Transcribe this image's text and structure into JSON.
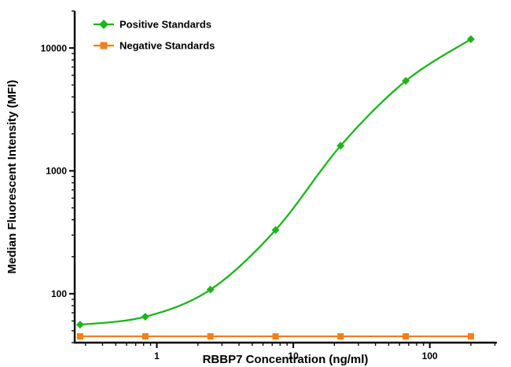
{
  "chart_data": {
    "type": "line",
    "title": "",
    "xlabel": "RBBP7 Concentration (ng/ml)",
    "ylabel": "Median Fluorescent Intensity (MFI)",
    "xscale": "log",
    "yscale": "log",
    "xlim": [
      0.25,
      310
    ],
    "ylim": [
      40,
      20000
    ],
    "xticks": [
      1,
      10,
      100
    ],
    "yticks": [
      100,
      1000,
      10000
    ],
    "grid": false,
    "legend_position": "top-left",
    "x": [
      0.274,
      0.823,
      2.47,
      7.41,
      22.2,
      66.7,
      200
    ],
    "series": [
      {
        "name": "Positive Standards",
        "color": "#1db51d",
        "marker": "diamond",
        "values": [
          56,
          65,
          108,
          330,
          1600,
          5400,
          11800
        ]
      },
      {
        "name": "Negative Standards",
        "color": "#f07f1e",
        "marker": "square",
        "values": [
          45,
          45,
          45,
          45,
          45,
          45,
          45
        ]
      }
    ]
  }
}
